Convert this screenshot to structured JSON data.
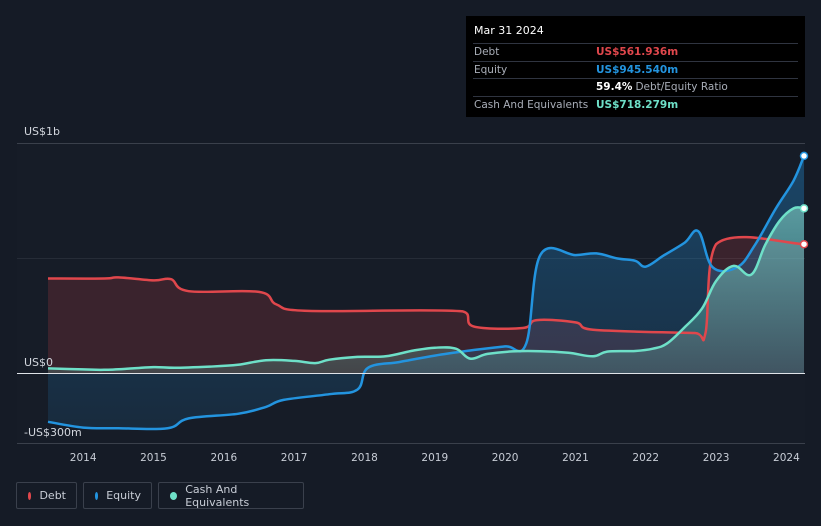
{
  "tooltip": {
    "date": "Mar 31 2024",
    "rows": {
      "debt": {
        "label": "Debt",
        "value": "US$561.936m"
      },
      "equity": {
        "label": "Equity",
        "value": "US$945.540m"
      },
      "ratio": {
        "value": "59.4%",
        "label": "Debt/Equity Ratio"
      },
      "cash": {
        "label": "Cash And Equivalents",
        "value": "US$718.279m"
      }
    }
  },
  "legend": {
    "debt": "Debt",
    "equity": "Equity",
    "cash": "Cash And Equivalents"
  },
  "colors": {
    "debt": "#e0474c",
    "equity": "#2394df",
    "cash": "#6ee0c8",
    "background": "#151b26"
  },
  "chart_data": {
    "type": "area",
    "y_tick_labels": [
      "US$1b",
      "US$0",
      "-US$300m"
    ],
    "x_tick_labels": [
      "2014",
      "2015",
      "2016",
      "2017",
      "2018",
      "2019",
      "2020",
      "2021",
      "2022",
      "2023",
      "2024"
    ],
    "xlim": [
      2013.5,
      2024.25
    ],
    "ylim": [
      -300,
      1000
    ],
    "series": [
      {
        "name": "Debt",
        "points": [
          [
            2013.5,
            413
          ],
          [
            2014.3,
            413
          ],
          [
            2014.5,
            418
          ],
          [
            2015.0,
            405
          ],
          [
            2015.25,
            410
          ],
          [
            2015.5,
            358
          ],
          [
            2016.5,
            355
          ],
          [
            2016.75,
            300
          ],
          [
            2017.2,
            272
          ],
          [
            2019.4,
            270
          ],
          [
            2019.55,
            205
          ],
          [
            2020.25,
            198
          ],
          [
            2020.45,
            232
          ],
          [
            2021.0,
            222
          ],
          [
            2021.25,
            190
          ],
          [
            2022.7,
            176
          ],
          [
            2022.85,
            176
          ],
          [
            2023.0,
            562
          ],
          [
            2024.25,
            562
          ]
        ]
      },
      {
        "name": "Equity",
        "points": [
          [
            2013.5,
            -210
          ],
          [
            2014.0,
            -235
          ],
          [
            2014.5,
            -238
          ],
          [
            2015.2,
            -238
          ],
          [
            2015.5,
            -195
          ],
          [
            2016.2,
            -175
          ],
          [
            2016.6,
            -145
          ],
          [
            2016.85,
            -115
          ],
          [
            2017.5,
            -90
          ],
          [
            2017.9,
            -70
          ],
          [
            2018.05,
            25
          ],
          [
            2018.5,
            50
          ],
          [
            2019.0,
            78
          ],
          [
            2019.5,
            100
          ],
          [
            2020.0,
            118
          ],
          [
            2020.3,
            130
          ],
          [
            2020.5,
            515
          ],
          [
            2021.0,
            515
          ],
          [
            2021.3,
            522
          ],
          [
            2021.6,
            500
          ],
          [
            2021.85,
            490
          ],
          [
            2022.0,
            465
          ],
          [
            2022.25,
            512
          ],
          [
            2022.55,
            568
          ],
          [
            2022.75,
            618
          ],
          [
            2022.95,
            462
          ],
          [
            2023.3,
            462
          ],
          [
            2023.55,
            558
          ],
          [
            2023.85,
            718
          ],
          [
            2024.1,
            838
          ],
          [
            2024.25,
            946
          ]
        ]
      },
      {
        "name": "Cash And Equivalents",
        "points": [
          [
            2013.5,
            22
          ],
          [
            2014.0,
            18
          ],
          [
            2014.3,
            16
          ],
          [
            2014.7,
            22
          ],
          [
            2015.0,
            28
          ],
          [
            2015.3,
            25
          ],
          [
            2015.8,
            30
          ],
          [
            2016.2,
            38
          ],
          [
            2016.6,
            58
          ],
          [
            2017.0,
            55
          ],
          [
            2017.3,
            45
          ],
          [
            2017.5,
            60
          ],
          [
            2017.9,
            72
          ],
          [
            2018.3,
            75
          ],
          [
            2018.7,
            100
          ],
          [
            2019.0,
            112
          ],
          [
            2019.3,
            108
          ],
          [
            2019.5,
            65
          ],
          [
            2019.75,
            85
          ],
          [
            2020.1,
            96
          ],
          [
            2020.5,
            97
          ],
          [
            2020.9,
            90
          ],
          [
            2021.25,
            75
          ],
          [
            2021.45,
            95
          ],
          [
            2021.85,
            98
          ],
          [
            2022.1,
            108
          ],
          [
            2022.3,
            130
          ],
          [
            2022.55,
            200
          ],
          [
            2022.8,
            282
          ],
          [
            2023.0,
            402
          ],
          [
            2023.25,
            468
          ],
          [
            2023.5,
            430
          ],
          [
            2023.7,
            560
          ],
          [
            2023.9,
            662
          ],
          [
            2024.1,
            718
          ],
          [
            2024.25,
            718
          ]
        ]
      }
    ]
  }
}
